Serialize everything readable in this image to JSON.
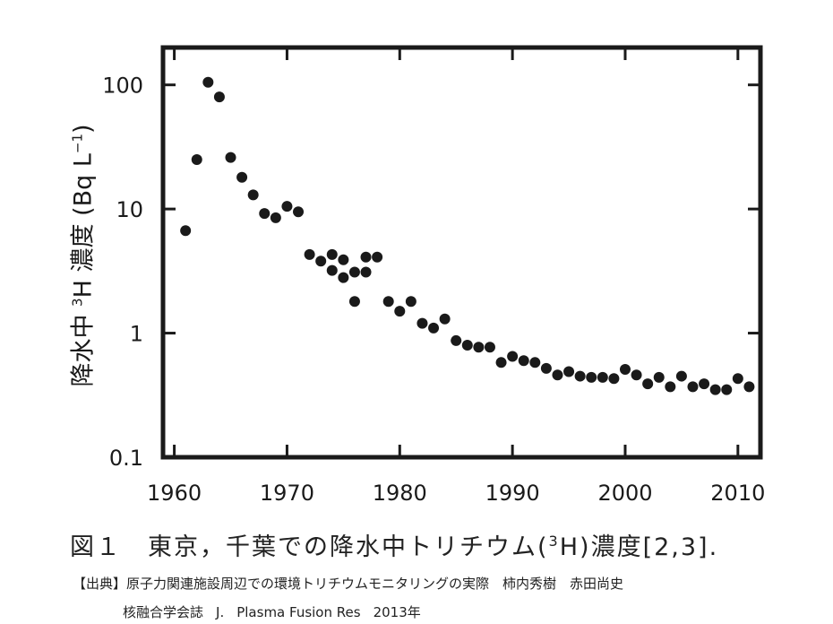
{
  "chart_data": {
    "type": "scatter",
    "y_scale": "log",
    "xlim": [
      1959,
      2012
    ],
    "ylim": [
      0.1,
      200
    ],
    "x_ticks": [
      1960,
      1970,
      1980,
      1990,
      2000,
      2010
    ],
    "y_ticks": [
      {
        "value": 100,
        "label": "100"
      },
      {
        "value": 10,
        "label": "10"
      },
      {
        "value": 1,
        "label": "1"
      },
      {
        "value": 0.1,
        "label": "0.1"
      }
    ],
    "ylabel": {
      "prefix": "降水中 ",
      "sup": "3",
      "main": "H 濃度 (Bq L",
      "sup2": "−1",
      "suffix": ")"
    },
    "grid": false,
    "series": [
      {
        "points": [
          [
            1961,
            6.7
          ],
          [
            1962,
            25
          ],
          [
            1963,
            105
          ],
          [
            1964,
            80
          ],
          [
            1965,
            26
          ],
          [
            1966,
            18
          ],
          [
            1967,
            13
          ],
          [
            1968,
            9.2
          ],
          [
            1969,
            8.5
          ],
          [
            1970,
            10.5
          ],
          [
            1971,
            9.5
          ],
          [
            1972,
            4.3
          ],
          [
            1973,
            3.8
          ],
          [
            1974,
            4.3
          ],
          [
            1974,
            3.2
          ],
          [
            1975,
            3.9
          ],
          [
            1975,
            2.8
          ],
          [
            1976,
            3.1
          ],
          [
            1976,
            1.8
          ],
          [
            1977,
            4.1
          ],
          [
            1977,
            3.1
          ],
          [
            1978,
            4.1
          ],
          [
            1979,
            1.8
          ],
          [
            1980,
            1.5
          ],
          [
            1981,
            1.8
          ],
          [
            1982,
            1.2
          ],
          [
            1983,
            1.1
          ],
          [
            1984,
            1.3
          ],
          [
            1985,
            0.87
          ],
          [
            1986,
            0.8
          ],
          [
            1987,
            0.77
          ],
          [
            1988,
            0.77
          ],
          [
            1989,
            0.58
          ],
          [
            1990,
            0.65
          ],
          [
            1991,
            0.6
          ],
          [
            1992,
            0.58
          ],
          [
            1993,
            0.52
          ],
          [
            1994,
            0.46
          ],
          [
            1995,
            0.49
          ],
          [
            1996,
            0.45
          ],
          [
            1997,
            0.44
          ],
          [
            1998,
            0.44
          ],
          [
            1999,
            0.43
          ],
          [
            2000,
            0.51
          ],
          [
            2001,
            0.46
          ],
          [
            2002,
            0.39
          ],
          [
            2003,
            0.44
          ],
          [
            2004,
            0.37
          ],
          [
            2005,
            0.45
          ],
          [
            2006,
            0.37
          ],
          [
            2007,
            0.39
          ],
          [
            2008,
            0.35
          ],
          [
            2009,
            0.35
          ],
          [
            2010,
            0.43
          ],
          [
            2011,
            0.37
          ]
        ]
      }
    ]
  },
  "caption": {
    "prefix": "図１　東京，千葉での降水中トリチウム(",
    "sup": "3",
    "main": "H)濃度[2,3]."
  },
  "source": {
    "line1": "【出典】原子力関連施設周辺での環境トリチウムモニタリングの実際　柿内秀樹　赤田尚史",
    "line2_a": "核融合学会誌",
    "line2_b": "J.",
    "line2_c": "Plasma Fusion Res",
    "line2_d": "2013年"
  },
  "colors": {
    "ink": "#1a1a1a",
    "frame": "#1a1a1a"
  }
}
